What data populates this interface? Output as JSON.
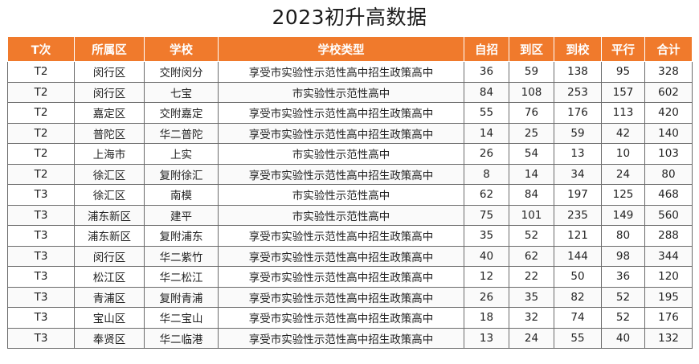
{
  "title": "2023初升高数据",
  "colors": {
    "header_bg": "#f07a2c",
    "header_text": "#ffffff",
    "border": "#6b6b6b"
  },
  "table": {
    "headers": [
      "T次",
      "所属区",
      "学校",
      "学校类型",
      "自招",
      "到区",
      "到校",
      "平行",
      "合计"
    ],
    "rows": [
      [
        "T2",
        "闵行区",
        "交附闵分",
        "享受市实验性示范性高中招生政策高中",
        "36",
        "59",
        "138",
        "95",
        "328"
      ],
      [
        "T2",
        "闵行区",
        "七宝",
        "市实验性示范性高中",
        "84",
        "108",
        "253",
        "157",
        "602"
      ],
      [
        "T2",
        "嘉定区",
        "交附嘉定",
        "享受市实验性示范性高中招生政策高中",
        "55",
        "76",
        "176",
        "113",
        "420"
      ],
      [
        "T2",
        "普陀区",
        "华二普陀",
        "享受市实验性示范性高中招生政策高中",
        "14",
        "25",
        "59",
        "42",
        "140"
      ],
      [
        "T2",
        "上海市",
        "上实",
        "市实验性示范性高中",
        "26",
        "54",
        "13",
        "10",
        "103"
      ],
      [
        "T2",
        "徐汇区",
        "复附徐汇",
        "享受市实验性示范性高中招生政策高中",
        "8",
        "14",
        "34",
        "24",
        "80"
      ],
      [
        "T3",
        "徐汇区",
        "南模",
        "市实验性示范性高中",
        "62",
        "84",
        "197",
        "125",
        "468"
      ],
      [
        "T3",
        "浦东新区",
        "建平",
        "市实验性示范性高中",
        "75",
        "101",
        "235",
        "149",
        "560"
      ],
      [
        "T3",
        "浦东新区",
        "复附浦东",
        "享受市实验性示范性高中招生政策高中",
        "35",
        "52",
        "121",
        "80",
        "288"
      ],
      [
        "T3",
        "闵行区",
        "华二紫竹",
        "享受市实验性示范性高中招生政策高中",
        "40",
        "62",
        "144",
        "98",
        "344"
      ],
      [
        "T3",
        "松江区",
        "华二松江",
        "享受市实验性示范性高中招生政策高中",
        "12",
        "22",
        "50",
        "36",
        "120"
      ],
      [
        "T3",
        "青浦区",
        "复附青浦",
        "享受市实验性示范性高中招生政策高中",
        "26",
        "35",
        "82",
        "52",
        "195"
      ],
      [
        "T3",
        "宝山区",
        "华二宝山",
        "享受市实验性示范性高中招生政策高中",
        "18",
        "32",
        "74",
        "52",
        "176"
      ],
      [
        "T3",
        "奉贤区",
        "华二临港",
        "享受市实验性示范性高中招生政策高中",
        "13",
        "24",
        "55",
        "40",
        "132"
      ]
    ]
  }
}
